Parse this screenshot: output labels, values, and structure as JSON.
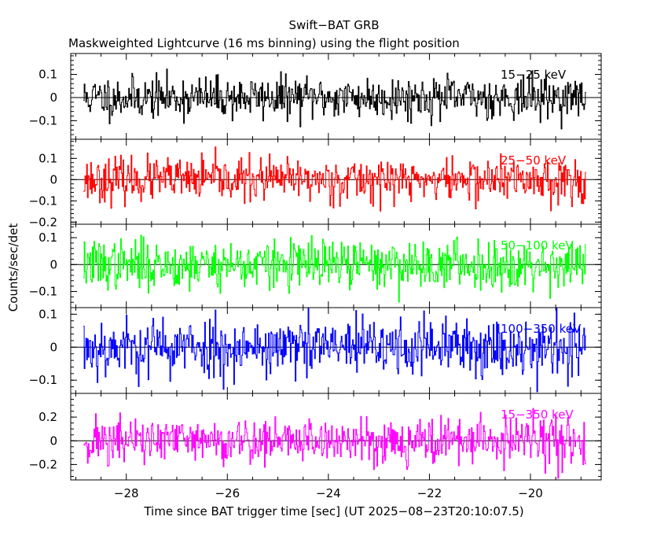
{
  "chart_data": {
    "type": "line",
    "title": "Swift−BAT GRB",
    "subtitle": "Maskweighted Lightcurve (16 ms binning) using the flight position",
    "xlabel": "Time since BAT trigger time [sec] (UT 2025−08−23T20:10:07.5)",
    "ylabel": "Counts/sec/det",
    "xlim": [
      -29.1,
      -18.6
    ],
    "data_x_range": [
      -28.85,
      -18.9
    ],
    "bin_width_sec": 0.016,
    "x_ticks": [
      -28,
      -26,
      -24,
      -22,
      -20
    ],
    "x_tick_labels": [
      "−28",
      "−26",
      "−24",
      "−22",
      "−20"
    ],
    "panels": [
      {
        "name": "15-25 keV",
        "label": "15−25 keV",
        "color": "#000000",
        "ylim": [
          -0.18,
          0.19
        ],
        "y_ticks": [
          -0.1,
          0,
          0.1
        ],
        "y_tick_labels": [
          "−0.1",
          "0",
          "0.1"
        ],
        "noise_sigma": 0.045,
        "seed": 11
      },
      {
        "name": "25-50 keV",
        "label": "25−50 keV",
        "color": "#ff0000",
        "ylim": [
          -0.21,
          0.19
        ],
        "y_ticks": [
          -0.2,
          -0.1,
          0,
          0.1
        ],
        "y_tick_labels": [
          "−0.2",
          "−0.1",
          "0",
          "0.1"
        ],
        "noise_sigma": 0.05,
        "seed": 23
      },
      {
        "name": "50-100 keV",
        "label": "50−100 keV",
        "color": "#00ff00",
        "ylim": [
          -0.16,
          0.15
        ],
        "y_ticks": [
          -0.1,
          0,
          0.1
        ],
        "y_tick_labels": [
          "−0.1",
          "0",
          "0.1"
        ],
        "noise_sigma": 0.045,
        "seed": 37
      },
      {
        "name": "100-350 keV",
        "label": "100−350 keV",
        "color": "#0000ff",
        "ylim": [
          -0.14,
          0.12
        ],
        "y_ticks": [
          -0.1,
          0,
          0.1
        ],
        "y_tick_labels": [
          "−0.1",
          "0",
          "0.1"
        ],
        "noise_sigma": 0.045,
        "seed": 53
      },
      {
        "name": "15-350 keV",
        "label": "15−350 keV",
        "color": "#ff00ff",
        "ylim": [
          -0.33,
          0.4
        ],
        "y_ticks": [
          -0.2,
          0,
          0.2
        ],
        "y_tick_labels": [
          "−0.2",
          "0",
          "0.2"
        ],
        "noise_sigma": 0.1,
        "seed": 71
      }
    ]
  }
}
